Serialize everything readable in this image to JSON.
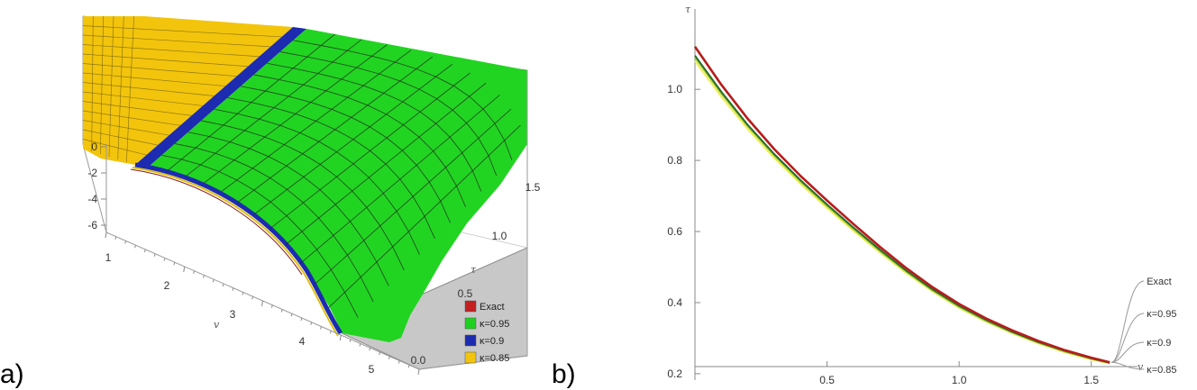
{
  "panels": [
    {
      "label": "a)"
    },
    {
      "label": "b)"
    }
  ],
  "colors": {
    "exact": "#c42020",
    "k095": "#1fd11f",
    "k09": "#1c2bb0",
    "k085": "#f2c40c",
    "mesh": "#1e2a1e",
    "floor": "#c8c8c8"
  },
  "chart_data": [
    {
      "type": "surface3d",
      "xlabel": "v",
      "ylabel": "τ",
      "xlim": [
        1,
        5
      ],
      "ylim": [
        0,
        1.5
      ],
      "zlim": [
        -6,
        0
      ],
      "x_ticks": [
        "1",
        "2",
        "3",
        "4",
        "5"
      ],
      "y_ticks": [
        "0.0",
        "0.5",
        "1.0",
        "1.5"
      ],
      "z_ticks": [
        "0",
        "-2",
        "-4",
        "-6"
      ],
      "legend": [
        {
          "name": "Exact",
          "color": "#c42020"
        },
        {
          "name": "κ=0.95",
          "color": "#1fd11f"
        },
        {
          "name": "κ=0.9",
          "color": "#1c2bb0"
        },
        {
          "name": "κ=0.85",
          "color": "#f2c40c"
        }
      ],
      "legend_position": "bottom-right"
    },
    {
      "type": "line",
      "xlabel": "v",
      "ylabel": "τ",
      "xlim": [
        0,
        1.6
      ],
      "ylim": [
        0.22,
        1.15
      ],
      "x_ticks": [
        "0.5",
        "1.0",
        "1.5"
      ],
      "y_ticks": [
        "0.2",
        "0.4",
        "0.6",
        "0.8",
        "1.0"
      ],
      "series": [
        {
          "name": "Exact",
          "color": "#b81c1c",
          "x": [
            0,
            0.1,
            0.2,
            0.3,
            0.4,
            0.5,
            0.6,
            0.7,
            0.8,
            0.9,
            1.0,
            1.1,
            1.2,
            1.3,
            1.4,
            1.5,
            1.57
          ],
          "values": [
            1.12,
            1.013,
            0.917,
            0.832,
            0.756,
            0.687,
            0.621,
            0.557,
            0.497,
            0.443,
            0.396,
            0.356,
            0.322,
            0.292,
            0.266,
            0.245,
            0.232
          ]
        },
        {
          "name": "κ=0.95",
          "color": "#2d6b2d",
          "x": [
            0,
            0.1,
            0.2,
            0.3,
            0.4,
            0.5,
            0.6,
            0.7,
            0.8,
            0.9,
            1.0,
            1.1,
            1.2,
            1.3,
            1.4,
            1.5,
            1.57
          ],
          "values": [
            1.095,
            0.993,
            0.9,
            0.818,
            0.744,
            0.676,
            0.611,
            0.549,
            0.49,
            0.437,
            0.391,
            0.352,
            0.318,
            0.289,
            0.264,
            0.243,
            0.231
          ]
        },
        {
          "name": "κ=0.9",
          "color": "#9acd32",
          "x": [
            0,
            0.1,
            0.2,
            0.3,
            0.4,
            0.5,
            0.6,
            0.7,
            0.8,
            0.9,
            1.0,
            1.1,
            1.2,
            1.3,
            1.4,
            1.5,
            1.57
          ],
          "values": [
            1.09,
            0.988,
            0.896,
            0.814,
            0.74,
            0.672,
            0.607,
            0.545,
            0.487,
            0.434,
            0.388,
            0.349,
            0.316,
            0.287,
            0.262,
            0.242,
            0.23
          ]
        },
        {
          "name": "κ=0.85",
          "color": "#f4ee5a",
          "x": [
            0,
            0.1,
            0.2,
            0.3,
            0.4,
            0.5,
            0.6,
            0.7,
            0.8,
            0.9,
            1.0,
            1.1,
            1.2,
            1.3,
            1.4,
            1.5,
            1.57
          ],
          "values": [
            1.08,
            0.979,
            0.888,
            0.807,
            0.734,
            0.666,
            0.602,
            0.541,
            0.483,
            0.431,
            0.385,
            0.347,
            0.314,
            0.285,
            0.26,
            0.24,
            0.229
          ]
        }
      ]
    }
  ]
}
